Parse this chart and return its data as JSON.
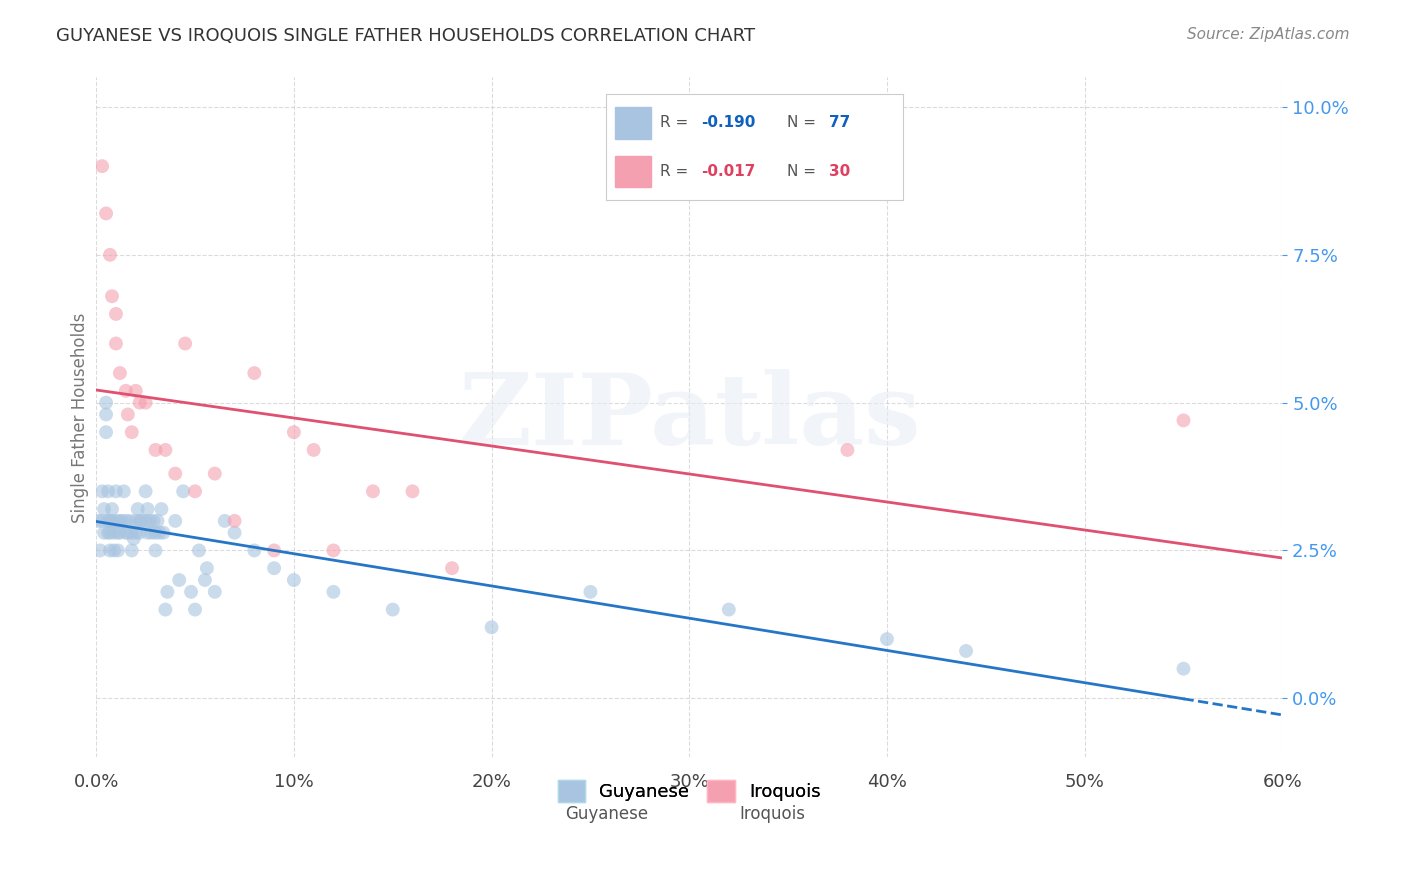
{
  "title": "GUYANESE VS IROQUOIS SINGLE FATHER HOUSEHOLDS CORRELATION CHART",
  "source": "Source: ZipAtlas.com",
  "xlabel": "",
  "ylabel": "Single Father Households",
  "watermark": "ZIPatlas",
  "guyanese_R": -0.19,
  "guyanese_N": 77,
  "iroquois_R": -0.017,
  "iroquois_N": 30,
  "guyanese_color": "#a8c4e0",
  "iroquois_color": "#f4a0b0",
  "guyanese_line_color": "#2676c8",
  "iroquois_line_color": "#e05070",
  "background_color": "#ffffff",
  "grid_color": "#cccccc",
  "title_color": "#333333",
  "source_color": "#888888",
  "legend_R_color_guyanese": "#1060c0",
  "legend_R_color_iroquois": "#e04060",
  "legend_N_color": "#333333",
  "xlim": [
    0.0,
    0.6
  ],
  "ylim": [
    -0.01,
    0.105
  ],
  "xticks": [
    0.0,
    0.1,
    0.2,
    0.3,
    0.4,
    0.5,
    0.6
  ],
  "yticks": [
    0.0,
    0.025,
    0.05,
    0.075,
    0.1
  ],
  "guyanese_x": [
    0.001,
    0.002,
    0.003,
    0.003,
    0.004,
    0.004,
    0.005,
    0.005,
    0.005,
    0.006,
    0.006,
    0.006,
    0.007,
    0.007,
    0.007,
    0.008,
    0.008,
    0.009,
    0.009,
    0.01,
    0.01,
    0.011,
    0.011,
    0.012,
    0.012,
    0.013,
    0.014,
    0.015,
    0.015,
    0.016,
    0.017,
    0.018,
    0.018,
    0.019,
    0.02,
    0.02,
    0.021,
    0.022,
    0.022,
    0.023,
    0.025,
    0.025,
    0.026,
    0.026,
    0.027,
    0.028,
    0.029,
    0.03,
    0.03,
    0.031,
    0.032,
    0.033,
    0.034,
    0.035,
    0.036,
    0.04,
    0.042,
    0.044,
    0.048,
    0.05,
    0.052,
    0.055,
    0.056,
    0.06,
    0.065,
    0.07,
    0.08,
    0.09,
    0.1,
    0.12,
    0.15,
    0.2,
    0.25,
    0.32,
    0.4,
    0.44,
    0.55
  ],
  "guyanese_y": [
    0.03,
    0.025,
    0.035,
    0.03,
    0.028,
    0.032,
    0.05,
    0.048,
    0.045,
    0.035,
    0.03,
    0.028,
    0.03,
    0.028,
    0.025,
    0.032,
    0.03,
    0.028,
    0.025,
    0.035,
    0.03,
    0.028,
    0.025,
    0.03,
    0.028,
    0.03,
    0.035,
    0.03,
    0.028,
    0.028,
    0.03,
    0.028,
    0.025,
    0.027,
    0.03,
    0.028,
    0.032,
    0.03,
    0.028,
    0.03,
    0.035,
    0.03,
    0.028,
    0.032,
    0.03,
    0.028,
    0.03,
    0.025,
    0.028,
    0.03,
    0.028,
    0.032,
    0.028,
    0.015,
    0.018,
    0.03,
    0.02,
    0.035,
    0.018,
    0.015,
    0.025,
    0.02,
    0.022,
    0.018,
    0.03,
    0.028,
    0.025,
    0.022,
    0.02,
    0.018,
    0.015,
    0.012,
    0.018,
    0.015,
    0.01,
    0.008,
    0.005
  ],
  "iroquois_x": [
    0.003,
    0.005,
    0.007,
    0.008,
    0.01,
    0.01,
    0.012,
    0.015,
    0.016,
    0.018,
    0.02,
    0.022,
    0.025,
    0.03,
    0.035,
    0.04,
    0.045,
    0.05,
    0.06,
    0.07,
    0.08,
    0.09,
    0.1,
    0.11,
    0.12,
    0.14,
    0.16,
    0.18,
    0.38,
    0.55
  ],
  "iroquois_y": [
    0.09,
    0.082,
    0.075,
    0.068,
    0.065,
    0.06,
    0.055,
    0.052,
    0.048,
    0.045,
    0.052,
    0.05,
    0.05,
    0.042,
    0.042,
    0.038,
    0.06,
    0.035,
    0.038,
    0.03,
    0.055,
    0.025,
    0.045,
    0.042,
    0.025,
    0.035,
    0.035,
    0.022,
    0.042,
    0.047
  ],
  "marker_size": 100,
  "marker_alpha": 0.6,
  "line_width": 2.0
}
